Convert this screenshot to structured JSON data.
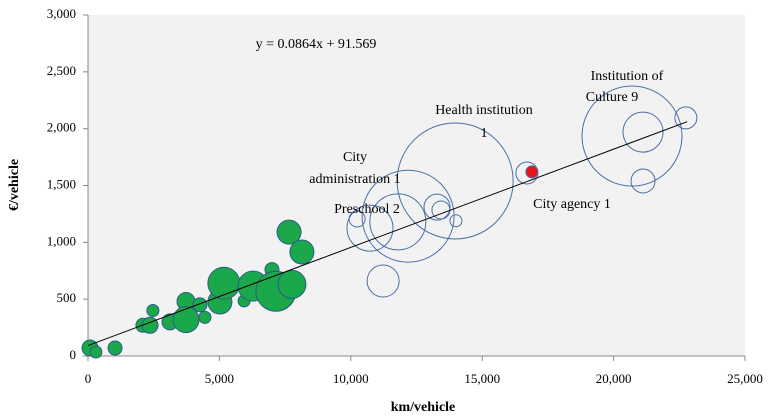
{
  "chart_data": {
    "type": "bubble",
    "xlabel": "km/vehicle",
    "ylabel": "€/vehicle",
    "xlim": [
      0,
      25000
    ],
    "ylim": [
      0,
      3000
    ],
    "xticks": [
      0,
      {
        "value": 5000,
        "label": "5,000"
      },
      {
        "value": 10000,
        "label": "10,000"
      },
      {
        "value": 15000,
        "label": "15,000"
      },
      {
        "value": 20000,
        "label": "20,000"
      },
      {
        "value": 25000,
        "label": "25,000"
      }
    ],
    "yticks": [
      0,
      500,
      {
        "value": 1000,
        "label": "1,000"
      },
      {
        "value": 1500,
        "label": "1,500"
      },
      {
        "value": 2000,
        "label": "2,000"
      },
      {
        "value": 2500,
        "label": "2,500"
      },
      {
        "value": 3000,
        "label": "3,000"
      }
    ],
    "series": [
      {
        "color": "#1aa84a",
        "stroke": "#2d5b8a",
        "x": [
          76,
          300,
          1030,
          2090,
          2360,
          2470,
          3120,
          3730,
          3730,
          4450,
          4260,
          5020,
          5170,
          5940,
          6280,
          7000,
          7150,
          7650,
          7760,
          8140
        ],
        "values": [
          70,
          35,
          70,
          270,
          270,
          400,
          300,
          480,
          320,
          340,
          450,
          475,
          640,
          485,
          615,
          760,
          570,
          1090,
          630,
          915
        ],
        "sizes": [
          8,
          6,
          7,
          7,
          8,
          6,
          8,
          9,
          13,
          6,
          7,
          12,
          16,
          6,
          15,
          7,
          20,
          12,
          14,
          12
        ]
      },
      {
        "color": "none",
        "stroke": "#4a6fa5",
        "x": [
          10240,
          10730,
          11790,
          12180,
          11230,
          13280,
          13430,
          14000,
          13970,
          16700,
          21120,
          20700,
          21120,
          22750
        ],
        "values": [
          1205,
          1125,
          1180,
          1230,
          660,
          1310,
          1285,
          1190,
          1540,
          1610,
          1540,
          1935,
          1970,
          2095
        ],
        "sizes": [
          8,
          23,
          28,
          46,
          16,
          13,
          9,
          6,
          58,
          11,
          12,
          50,
          20,
          11
        ]
      },
      {
        "color": "#e8141b",
        "stroke": "#4a6fa5",
        "x": [
          16890
        ],
        "values": [
          1620
        ],
        "sizes": [
          6
        ]
      }
    ],
    "trendline": {
      "slope": 0.0864,
      "intercept": 91.569,
      "xrange": [
        0,
        22800
      ]
    },
    "annotations": [
      "y = 0.0864x + 91.569",
      "Institution  of",
      "Culture 9",
      "Health institution",
      "1",
      "City",
      "administration  1",
      "Preschool 2",
      "City agency 1"
    ]
  }
}
